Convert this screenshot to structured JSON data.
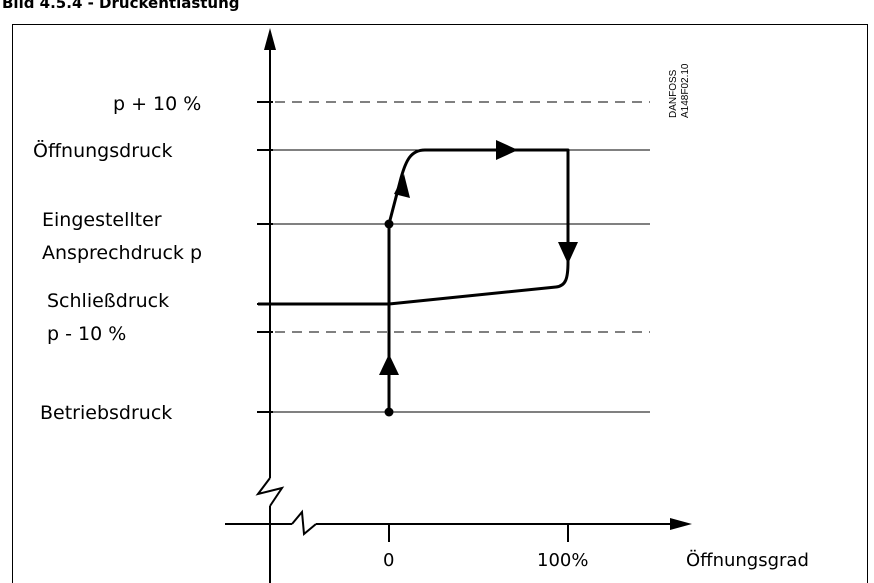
{
  "header": {
    "text": "Bild 4.5.4 - Druckentlastung"
  },
  "watermark": {
    "line1": "DANFOSS",
    "line2": "A148F02.10"
  },
  "levels": [
    {
      "id": "p-plus-10",
      "label": "p + 10 %",
      "style": "dashed"
    },
    {
      "id": "oeffnungsdruck",
      "label": "Öffnungsdruck",
      "style": "solid"
    },
    {
      "id": "eingestellter",
      "label_lines": [
        "Eingestellter",
        "Ansprechdruck p"
      ],
      "style": "solid"
    },
    {
      "id": "schliessdruck",
      "label_lines": [
        "Schließdruck"
      ],
      "style": "solid"
    },
    {
      "id": "p-minus-10",
      "label": "p - 10 %",
      "style": "dashed"
    },
    {
      "id": "betriebsdruck",
      "label": "Betriebsdruck",
      "style": "solid"
    }
  ],
  "x_axis": {
    "label": "Öffnungsgrad",
    "ticks": [
      "0",
      "100%"
    ]
  },
  "colors": {
    "line": "#000000",
    "background": "#ffffff"
  }
}
